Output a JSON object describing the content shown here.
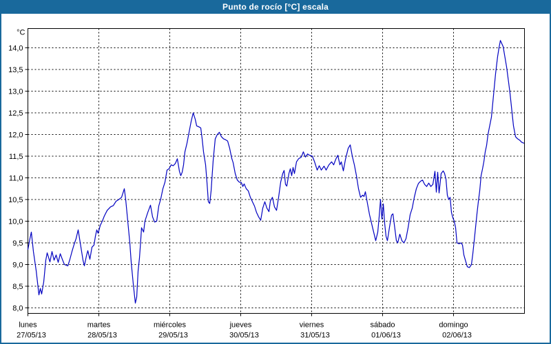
{
  "window": {
    "title": "Punto de rocío [°C] escala"
  },
  "colors": {
    "titlebar": "#19699C",
    "frame": "#19699C",
    "series_line": "#0000C0",
    "grid": "#000000",
    "plot_border": "#000000",
    "background": "#FFFFFF",
    "label_text": "#000000"
  },
  "chart_data": {
    "type": "line",
    "title": "Punto de rocío [°C] escala",
    "ylabel": "°C",
    "grid": "dashed",
    "legend_position": "none",
    "y_axis": {
      "min": 8.0,
      "max": 14.0,
      "tick_step": 0.5,
      "unit": "°C",
      "decimal_separator": ",",
      "tick_labels": [
        "8,0",
        "8,5",
        "9,0",
        "9,5",
        "10,0",
        "10,5",
        "11,0",
        "11,5",
        "12,0",
        "12,5",
        "13,0",
        "13,5",
        "14,0"
      ]
    },
    "x_axis": {
      "days": [
        {
          "weekday": "lunes",
          "date": "27/05/13"
        },
        {
          "weekday": "martes",
          "date": "28/05/13"
        },
        {
          "weekday": "miércoles",
          "date": "29/05/13"
        },
        {
          "weekday": "jueves",
          "date": "30/05/13"
        },
        {
          "weekday": "viernes",
          "date": "31/05/13"
        },
        {
          "weekday": "sábado",
          "date": "01/06/13"
        },
        {
          "weekday": "domingo",
          "date": "02/06/13"
        }
      ]
    },
    "series": [
      {
        "name": "Punto de rocío [°C]",
        "points": [
          [
            0,
            9.35
          ],
          [
            0.029,
            9.6
          ],
          [
            0.049,
            9.75
          ],
          [
            0.078,
            9.3
          ],
          [
            0.117,
            8.85
          ],
          [
            0.155,
            8.3
          ],
          [
            0.175,
            8.45
          ],
          [
            0.194,
            8.32
          ],
          [
            0.223,
            8.6
          ],
          [
            0.252,
            9.1
          ],
          [
            0.272,
            9.27
          ],
          [
            0.311,
            9.06
          ],
          [
            0.34,
            9.3
          ],
          [
            0.369,
            9.1
          ],
          [
            0.398,
            9.22
          ],
          [
            0.427,
            9.05
          ],
          [
            0.456,
            9.25
          ],
          [
            0.485,
            9.12
          ],
          [
            0.515,
            9.0
          ],
          [
            0.563,
            8.97
          ],
          [
            0.592,
            9.12
          ],
          [
            0.621,
            9.3
          ],
          [
            0.65,
            9.46
          ],
          [
            0.68,
            9.6
          ],
          [
            0.709,
            9.8
          ],
          [
            0.738,
            9.5
          ],
          [
            0.777,
            9.1
          ],
          [
            0.796,
            8.97
          ],
          [
            0.825,
            9.2
          ],
          [
            0.845,
            9.32
          ],
          [
            0.874,
            9.12
          ],
          [
            0.903,
            9.4
          ],
          [
            0.932,
            9.45
          ],
          [
            0.951,
            9.65
          ],
          [
            0.971,
            9.8
          ],
          [
            0.99,
            9.72
          ],
          [
            1.019,
            9.9
          ],
          [
            1.049,
            10.0
          ],
          [
            1.078,
            10.12
          ],
          [
            1.117,
            10.25
          ],
          [
            1.165,
            10.33
          ],
          [
            1.204,
            10.36
          ],
          [
            1.243,
            10.46
          ],
          [
            1.282,
            10.5
          ],
          [
            1.32,
            10.55
          ],
          [
            1.359,
            10.75
          ],
          [
            1.379,
            10.5
          ],
          [
            1.408,
            10.0
          ],
          [
            1.437,
            9.5
          ],
          [
            1.456,
            9.05
          ],
          [
            1.485,
            8.55
          ],
          [
            1.515,
            8.11
          ],
          [
            1.534,
            8.25
          ],
          [
            1.553,
            8.85
          ],
          [
            1.573,
            9.15
          ],
          [
            1.592,
            9.6
          ],
          [
            1.602,
            9.85
          ],
          [
            1.631,
            9.75
          ],
          [
            1.65,
            10.0
          ],
          [
            1.689,
            10.2
          ],
          [
            1.728,
            10.37
          ],
          [
            1.757,
            10.1
          ],
          [
            1.786,
            9.98
          ],
          [
            1.816,
            10.0
          ],
          [
            1.845,
            10.35
          ],
          [
            1.874,
            10.52
          ],
          [
            1.903,
            10.75
          ],
          [
            1.932,
            10.9
          ],
          [
            1.961,
            11.18
          ],
          [
            1.99,
            11.21
          ],
          [
            2.019,
            11.3
          ],
          [
            2.049,
            11.28
          ],
          [
            2.078,
            11.33
          ],
          [
            2.107,
            11.44
          ],
          [
            2.136,
            11.15
          ],
          [
            2.155,
            11.05
          ],
          [
            2.175,
            11.13
          ],
          [
            2.194,
            11.3
          ],
          [
            2.214,
            11.6
          ],
          [
            2.243,
            11.8
          ],
          [
            2.272,
            12.05
          ],
          [
            2.301,
            12.3
          ],
          [
            2.33,
            12.5
          ],
          [
            2.359,
            12.35
          ],
          [
            2.379,
            12.2
          ],
          [
            2.408,
            12.18
          ],
          [
            2.437,
            12.15
          ],
          [
            2.456,
            11.9
          ],
          [
            2.476,
            11.6
          ],
          [
            2.505,
            11.3
          ],
          [
            2.524,
            10.9
          ],
          [
            2.544,
            10.45
          ],
          [
            2.563,
            10.41
          ],
          [
            2.583,
            10.7
          ],
          [
            2.612,
            11.4
          ],
          [
            2.641,
            11.9
          ],
          [
            2.67,
            12.0
          ],
          [
            2.699,
            12.05
          ],
          [
            2.728,
            11.95
          ],
          [
            2.757,
            11.9
          ],
          [
            2.786,
            11.88
          ],
          [
            2.816,
            11.85
          ],
          [
            2.845,
            11.68
          ],
          [
            2.874,
            11.45
          ],
          [
            2.893,
            11.35
          ],
          [
            2.922,
            11.1
          ],
          [
            2.951,
            10.95
          ],
          [
            2.981,
            10.9
          ],
          [
            3.01,
            10.89
          ],
          [
            3.029,
            10.8
          ],
          [
            3.049,
            10.86
          ],
          [
            3.078,
            10.75
          ],
          [
            3.107,
            10.7
          ],
          [
            3.136,
            10.55
          ],
          [
            3.165,
            10.45
          ],
          [
            3.194,
            10.35
          ],
          [
            3.223,
            10.2
          ],
          [
            3.252,
            10.1
          ],
          [
            3.282,
            10.02
          ],
          [
            3.311,
            10.3
          ],
          [
            3.34,
            10.45
          ],
          [
            3.369,
            10.3
          ],
          [
            3.398,
            10.22
          ],
          [
            3.417,
            10.46
          ],
          [
            3.447,
            10.55
          ],
          [
            3.476,
            10.33
          ],
          [
            3.505,
            10.25
          ],
          [
            3.534,
            10.55
          ],
          [
            3.563,
            10.9
          ],
          [
            3.592,
            11.1
          ],
          [
            3.612,
            11.17
          ],
          [
            3.631,
            10.85
          ],
          [
            3.65,
            10.81
          ],
          [
            3.68,
            11.1
          ],
          [
            3.699,
            11.21
          ],
          [
            3.718,
            11.05
          ],
          [
            3.738,
            11.24
          ],
          [
            3.757,
            11.1
          ],
          [
            3.786,
            11.37
          ],
          [
            3.816,
            11.44
          ],
          [
            3.854,
            11.48
          ],
          [
            3.883,
            11.6
          ],
          [
            3.913,
            11.48
          ],
          [
            3.942,
            11.55
          ],
          [
            3.971,
            11.52
          ],
          [
            4.01,
            11.5
          ],
          [
            4.039,
            11.38
          ],
          [
            4.078,
            11.18
          ],
          [
            4.107,
            11.28
          ],
          [
            4.136,
            11.18
          ],
          [
            4.175,
            11.27
          ],
          [
            4.204,
            11.18
          ],
          [
            4.243,
            11.3
          ],
          [
            4.282,
            11.37
          ],
          [
            4.311,
            11.3
          ],
          [
            4.34,
            11.43
          ],
          [
            4.369,
            11.52
          ],
          [
            4.398,
            11.3
          ],
          [
            4.417,
            11.37
          ],
          [
            4.447,
            11.16
          ],
          [
            4.476,
            11.42
          ],
          [
            4.515,
            11.68
          ],
          [
            4.544,
            11.76
          ],
          [
            4.573,
            11.5
          ],
          [
            4.602,
            11.3
          ],
          [
            4.631,
            11.05
          ],
          [
            4.66,
            10.75
          ],
          [
            4.689,
            10.55
          ],
          [
            4.718,
            10.6
          ],
          [
            4.738,
            10.57
          ],
          [
            4.757,
            10.68
          ],
          [
            4.786,
            10.41
          ],
          [
            4.816,
            10.15
          ],
          [
            4.845,
            9.95
          ],
          [
            4.874,
            9.75
          ],
          [
            4.903,
            9.55
          ],
          [
            4.932,
            9.75
          ],
          [
            4.951,
            10.1
          ],
          [
            4.971,
            10.5
          ],
          [
            4.99,
            10.05
          ],
          [
            5.01,
            10.4
          ],
          [
            5.029,
            9.95
          ],
          [
            5.049,
            9.65
          ],
          [
            5.068,
            9.55
          ],
          [
            5.097,
            9.86
          ],
          [
            5.126,
            10.14
          ],
          [
            5.146,
            10.17
          ],
          [
            5.175,
            9.8
          ],
          [
            5.194,
            9.55
          ],
          [
            5.214,
            9.5
          ],
          [
            5.243,
            9.7
          ],
          [
            5.272,
            9.55
          ],
          [
            5.301,
            9.5
          ],
          [
            5.33,
            9.6
          ],
          [
            5.359,
            9.85
          ],
          [
            5.388,
            10.15
          ],
          [
            5.417,
            10.3
          ],
          [
            5.447,
            10.55
          ],
          [
            5.476,
            10.75
          ],
          [
            5.505,
            10.87
          ],
          [
            5.534,
            10.92
          ],
          [
            5.563,
            10.95
          ],
          [
            5.592,
            10.85
          ],
          [
            5.621,
            10.8
          ],
          [
            5.65,
            10.88
          ],
          [
            5.68,
            10.8
          ],
          [
            5.709,
            10.85
          ],
          [
            5.738,
            11.15
          ],
          [
            5.757,
            10.67
          ],
          [
            5.777,
            11.13
          ],
          [
            5.796,
            10.65
          ],
          [
            5.825,
            11.1
          ],
          [
            5.854,
            11.16
          ],
          [
            5.874,
            11.1
          ],
          [
            5.893,
            10.97
          ],
          [
            5.913,
            10.6
          ],
          [
            5.932,
            10.5
          ],
          [
            5.951,
            10.55
          ],
          [
            5.971,
            10.2
          ],
          [
            5.99,
            10.08
          ],
          [
            6.01,
            10.0
          ],
          [
            6.029,
            9.85
          ],
          [
            6.049,
            9.5
          ],
          [
            6.078,
            9.48
          ],
          [
            6.107,
            9.5
          ],
          [
            6.126,
            9.45
          ],
          [
            6.146,
            9.22
          ],
          [
            6.165,
            9.11
          ],
          [
            6.194,
            8.95
          ],
          [
            6.223,
            8.93
          ],
          [
            6.252,
            9.0
          ],
          [
            6.272,
            9.25
          ],
          [
            6.291,
            9.55
          ],
          [
            6.311,
            9.86
          ],
          [
            6.33,
            10.17
          ],
          [
            6.35,
            10.45
          ],
          [
            6.369,
            10.7
          ],
          [
            6.388,
            11.05
          ],
          [
            6.408,
            11.2
          ],
          [
            6.427,
            11.37
          ],
          [
            6.447,
            11.6
          ],
          [
            6.466,
            11.75
          ],
          [
            6.485,
            12.0
          ],
          [
            6.505,
            12.16
          ],
          [
            6.534,
            12.4
          ],
          [
            6.563,
            12.9
          ],
          [
            6.592,
            13.4
          ],
          [
            6.621,
            13.8
          ],
          [
            6.641,
            14.0
          ],
          [
            6.66,
            14.17
          ],
          [
            6.68,
            14.1
          ],
          [
            6.699,
            14.03
          ],
          [
            6.728,
            13.75
          ],
          [
            6.748,
            13.56
          ],
          [
            6.777,
            13.2
          ],
          [
            6.796,
            12.95
          ],
          [
            6.825,
            12.5
          ],
          [
            6.845,
            12.2
          ],
          [
            6.874,
            11.95
          ],
          [
            6.903,
            11.9
          ],
          [
            6.932,
            11.87
          ],
          [
            6.961,
            11.82
          ],
          [
            6.99,
            11.8
          ]
        ]
      }
    ]
  }
}
